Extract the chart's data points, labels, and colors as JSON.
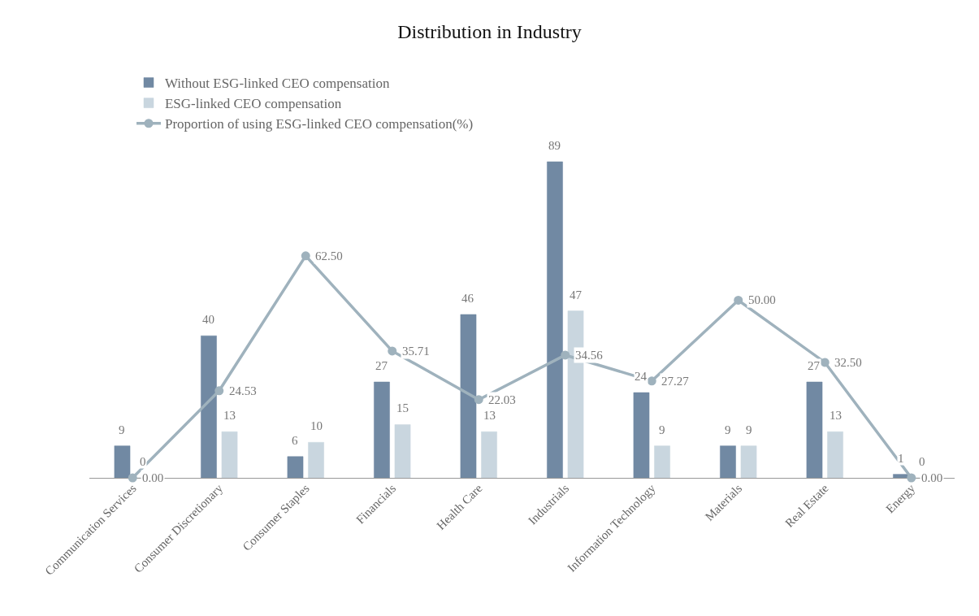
{
  "chart_data": {
    "type": "bar",
    "title": "Distribution in Industry",
    "categories": [
      "Communication Services",
      "Consumer Discretionary",
      "Consumer Staples",
      "Financials",
      "Health Care",
      "Industrials",
      "Information Technology",
      "Materials",
      "Real Estate",
      "Energy"
    ],
    "series": [
      {
        "name": "Without ESG-linked CEO compensation",
        "color": "#7189a3",
        "values": [
          9,
          40,
          6,
          27,
          46,
          89,
          24,
          9,
          27,
          1
        ]
      },
      {
        "name": "ESG-linked CEO compensation",
        "color": "#c9d6df",
        "values": [
          0,
          13,
          10,
          15,
          13,
          47,
          9,
          9,
          13,
          0
        ]
      },
      {
        "name": "Proportion of using ESG-linked CEO compensation(%)",
        "type": "line",
        "color": "#9fb2bd",
        "marker": "circle",
        "values": [
          0,
          24.53,
          62.5,
          35.71,
          22.03,
          34.56,
          27.27,
          50,
          32.5,
          0
        ],
        "value_labels": [
          "0.00",
          "24.53",
          "62.50",
          "35.71",
          "22.03",
          "34.56",
          "27.27",
          "50.00",
          "32.50",
          "0.00"
        ]
      }
    ],
    "data_labels": true,
    "legend": "top",
    "tick_labels": "x"
  }
}
